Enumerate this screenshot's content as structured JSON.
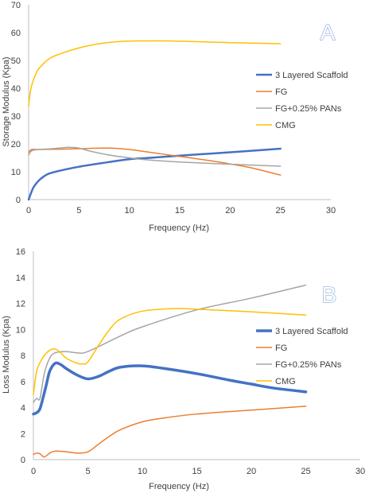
{
  "chart_data": [
    {
      "type": "line",
      "panel_label": "A",
      "title": "",
      "xlabel": "Frequency (Hz)",
      "ylabel": "Storage Modulus (Kpa)",
      "xlim": [
        0,
        30
      ],
      "ylim": [
        0,
        70
      ],
      "xticks": [
        0,
        5,
        10,
        15,
        20,
        25,
        30
      ],
      "yticks": [
        0,
        10,
        20,
        30,
        40,
        50,
        60,
        70
      ],
      "grid": false,
      "legend": "right",
      "series": [
        {
          "name": "3 Layered Scaffold",
          "color": "#4472C4",
          "points": [
            [
              0,
              0
            ],
            [
              0.2,
              2
            ],
            [
              0.5,
              4.5
            ],
            [
              1,
              6.8
            ],
            [
              1.5,
              8.3
            ],
            [
              2,
              9.3
            ],
            [
              3,
              10.3
            ],
            [
              5,
              11.8
            ],
            [
              8,
              13.5
            ],
            [
              10,
              14.5
            ],
            [
              12,
              15
            ],
            [
              15,
              15.8
            ],
            [
              20,
              17
            ],
            [
              25,
              18.3
            ]
          ]
        },
        {
          "name": "FG",
          "color": "#ED7D31",
          "points": [
            [
              0,
              17
            ],
            [
              0.3,
              18
            ],
            [
              1,
              18
            ],
            [
              3,
              18.1
            ],
            [
              5,
              18.3
            ],
            [
              8,
              18.5
            ],
            [
              10,
              18
            ],
            [
              12,
              17
            ],
            [
              15,
              15.5
            ],
            [
              18,
              14
            ],
            [
              20,
              12.8
            ],
            [
              22,
              11.5
            ],
            [
              25,
              8.8
            ]
          ]
        },
        {
          "name": "FG+0.25% PANs",
          "color": "#A5A5A5",
          "points": [
            [
              0,
              16
            ],
            [
              0.3,
              17.5
            ],
            [
              1,
              18
            ],
            [
              2,
              18.2
            ],
            [
              3,
              18.5
            ],
            [
              4,
              18.8
            ],
            [
              5,
              18.5
            ],
            [
              6,
              17.5
            ],
            [
              8,
              16
            ],
            [
              10,
              15
            ],
            [
              12,
              14.2
            ],
            [
              15,
              13.5
            ],
            [
              20,
              12.7
            ],
            [
              25,
              12
            ]
          ]
        },
        {
          "name": "CMG",
          "color": "#FFC000",
          "points": [
            [
              0,
              33.5
            ],
            [
              0.1,
              37
            ],
            [
              0.3,
              41
            ],
            [
              0.7,
              45
            ],
            [
              1,
              47
            ],
            [
              2,
              50.5
            ],
            [
              3,
              52.2
            ],
            [
              5,
              54.5
            ],
            [
              7,
              56
            ],
            [
              9,
              56.8
            ],
            [
              11,
              57
            ],
            [
              14,
              57
            ],
            [
              17,
              56.7
            ],
            [
              20,
              56.4
            ],
            [
              25,
              56
            ]
          ]
        }
      ]
    },
    {
      "type": "line",
      "panel_label": "B",
      "title": "",
      "xlabel": "Frequency (Hz)",
      "ylabel": "Loss Modulus (Kpa)",
      "xlim": [
        0,
        30
      ],
      "ylim": [
        0,
        16
      ],
      "xticks": [
        0,
        5,
        10,
        15,
        20,
        25,
        30
      ],
      "yticks": [
        0,
        2,
        4,
        6,
        8,
        10,
        12,
        14,
        16
      ],
      "grid": false,
      "legend": "right",
      "series": [
        {
          "name": "3 Layered Scaffold",
          "color": "#4472C4",
          "points": [
            [
              0,
              3.5
            ],
            [
              0.3,
              3.6
            ],
            [
              0.6,
              3.9
            ],
            [
              0.9,
              4.8
            ],
            [
              1.2,
              5.8
            ],
            [
              1.5,
              6.8
            ],
            [
              2,
              7.4
            ],
            [
              2.5,
              7.3
            ],
            [
              3,
              7
            ],
            [
              4,
              6.5
            ],
            [
              5,
              6.2
            ],
            [
              6,
              6.4
            ],
            [
              7,
              6.8
            ],
            [
              8,
              7.1
            ],
            [
              10,
              7.2
            ],
            [
              12,
              7
            ],
            [
              15,
              6.6
            ],
            [
              18,
              6.1
            ],
            [
              20,
              5.8
            ],
            [
              22,
              5.5
            ],
            [
              25,
              5.2
            ]
          ]
        },
        {
          "name": "FG",
          "color": "#ED7D31",
          "points": [
            [
              0,
              0.4
            ],
            [
              0.3,
              0.5
            ],
            [
              0.6,
              0.45
            ],
            [
              1,
              0.2
            ],
            [
              1.5,
              0.5
            ],
            [
              2,
              0.65
            ],
            [
              3,
              0.6
            ],
            [
              4,
              0.5
            ],
            [
              5,
              0.6
            ],
            [
              6,
              1.2
            ],
            [
              7,
              1.8
            ],
            [
              8,
              2.3
            ],
            [
              10,
              2.9
            ],
            [
              12,
              3.2
            ],
            [
              15,
              3.5
            ],
            [
              20,
              3.8
            ],
            [
              25,
              4.1
            ]
          ]
        },
        {
          "name": "FG+0.25% PANs",
          "color": "#A5A5A5",
          "points": [
            [
              0,
              4.4
            ],
            [
              0.3,
              4.7
            ],
            [
              0.6,
              4.7
            ],
            [
              1,
              6.6
            ],
            [
              1.5,
              7.8
            ],
            [
              2,
              8.2
            ],
            [
              3,
              8.3
            ],
            [
              4,
              8.2
            ],
            [
              5,
              8.3
            ],
            [
              8,
              9.5
            ],
            [
              10,
              10.2
            ],
            [
              15,
              11.5
            ],
            [
              20,
              12.4
            ],
            [
              25,
              13.4
            ]
          ]
        },
        {
          "name": "CMG",
          "color": "#FFC000",
          "points": [
            [
              0,
              5
            ],
            [
              0.3,
              6.8
            ],
            [
              0.7,
              7.6
            ],
            [
              1,
              8
            ],
            [
              1.5,
              8.4
            ],
            [
              2,
              8.5
            ],
            [
              2.5,
              8.2
            ],
            [
              3,
              7.8
            ],
            [
              4,
              7.4
            ],
            [
              4.5,
              7.35
            ],
            [
              5,
              7.5
            ],
            [
              6,
              8.8
            ],
            [
              7,
              10
            ],
            [
              8,
              10.8
            ],
            [
              10,
              11.4
            ],
            [
              13,
              11.6
            ],
            [
              15,
              11.55
            ],
            [
              20,
              11.35
            ],
            [
              25,
              11.1
            ]
          ]
        }
      ]
    }
  ]
}
